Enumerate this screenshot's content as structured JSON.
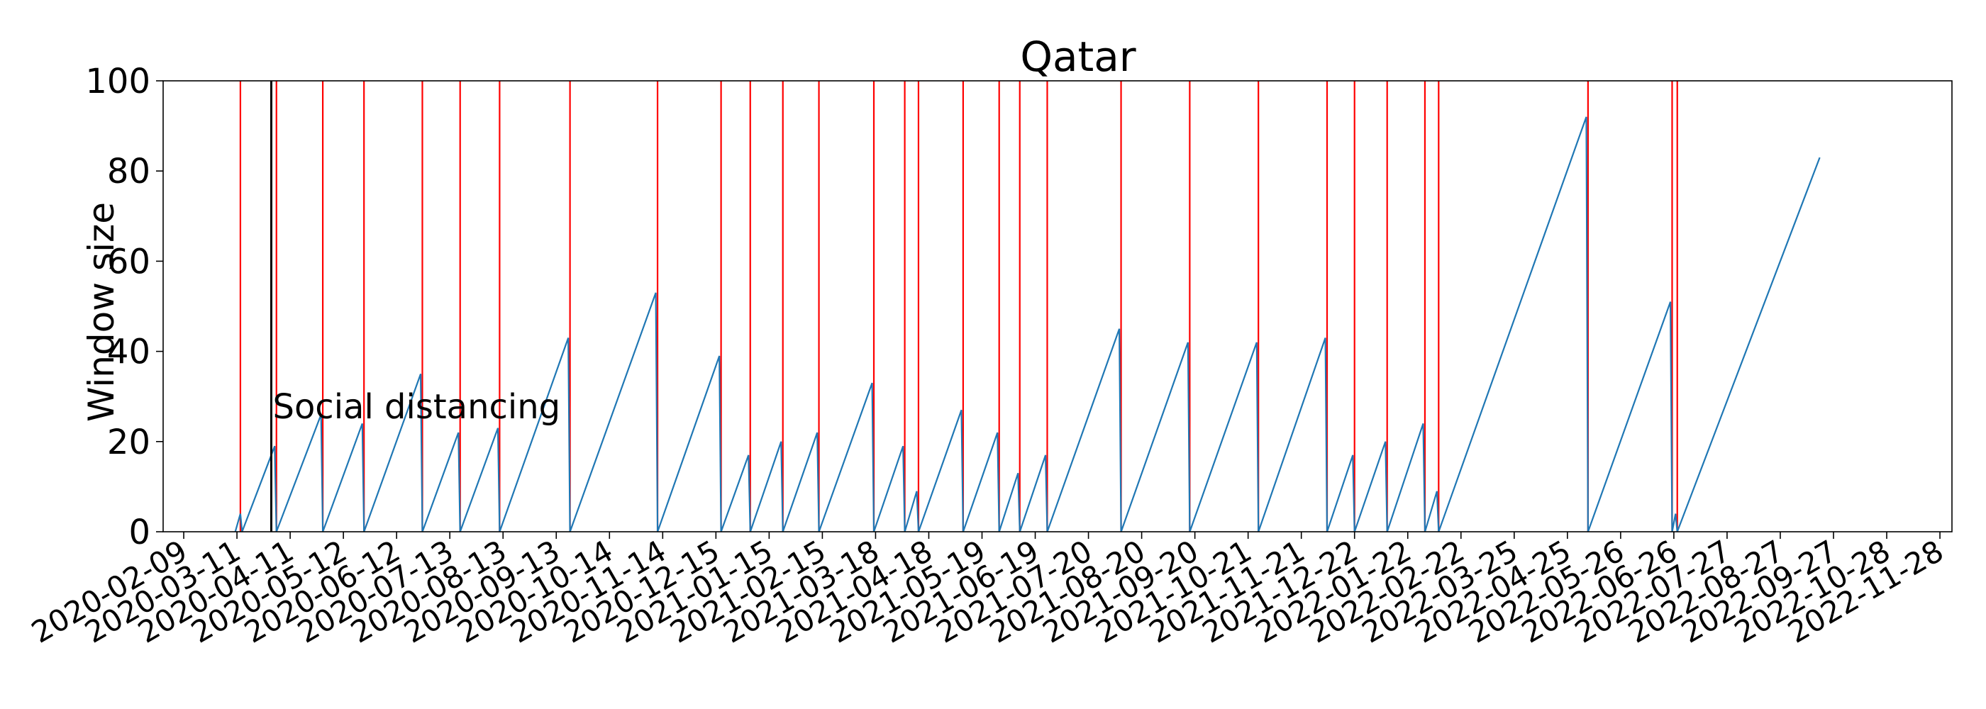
{
  "chart_data": {
    "type": "line",
    "title": "Qatar",
    "xlabel": "",
    "ylabel": "Window size",
    "ylim": [
      0,
      100
    ],
    "yticks": [
      "0",
      "20",
      "40",
      "60",
      "80",
      "100"
    ],
    "xlim": [
      "2020-01-28",
      "2022-12-05"
    ],
    "xtick_labels": [
      "2020-02-09",
      "2020-03-11",
      "2020-04-11",
      "2020-05-12",
      "2020-06-12",
      "2020-07-13",
      "2020-08-13",
      "2020-09-13",
      "2020-10-14",
      "2020-11-14",
      "2020-12-15",
      "2021-01-15",
      "2021-02-15",
      "2021-03-18",
      "2021-04-18",
      "2021-05-19",
      "2021-06-19",
      "2021-07-20",
      "2021-08-20",
      "2021-09-20",
      "2021-10-21",
      "2021-11-21",
      "2021-12-22",
      "2022-01-22",
      "2022-02-22",
      "2022-03-25",
      "2022-04-25",
      "2022-05-26",
      "2022-06-26",
      "2022-07-27",
      "2022-08-27",
      "2022-09-27",
      "2022-10-28",
      "2022-11-28"
    ],
    "grid": false,
    "series_color": "#1f77b4",
    "change_point_color": "#ff0000",
    "intervention_color": "#000000",
    "series": [
      {
        "points": [
          [
            "2020-03-10",
            0
          ],
          [
            "2020-03-13",
            4
          ],
          [
            "2020-03-14",
            0
          ],
          [
            "2020-04-02",
            19
          ],
          [
            "2020-04-03",
            0
          ],
          [
            "2020-04-29",
            26
          ],
          [
            "2020-04-30",
            0
          ],
          [
            "2020-05-23",
            24
          ],
          [
            "2020-05-24",
            0
          ],
          [
            "2020-06-26",
            35
          ],
          [
            "2020-06-27",
            0
          ],
          [
            "2020-07-18",
            22
          ],
          [
            "2020-07-19",
            0
          ],
          [
            "2020-08-10",
            23
          ],
          [
            "2020-08-11",
            0
          ],
          [
            "2020-09-20",
            43
          ],
          [
            "2020-09-21",
            0
          ],
          [
            "2020-11-10",
            53
          ],
          [
            "2020-11-11",
            0
          ],
          [
            "2020-12-17",
            39
          ],
          [
            "2020-12-18",
            0
          ],
          [
            "2021-01-03",
            17
          ],
          [
            "2021-01-04",
            0
          ],
          [
            "2021-01-22",
            20
          ],
          [
            "2021-01-23",
            0
          ],
          [
            "2021-02-12",
            22
          ],
          [
            "2021-02-13",
            0
          ],
          [
            "2021-03-16",
            33
          ],
          [
            "2021-03-17",
            0
          ],
          [
            "2021-04-03",
            19
          ],
          [
            "2021-04-04",
            0
          ],
          [
            "2021-04-11",
            9
          ],
          [
            "2021-04-12",
            0
          ],
          [
            "2021-05-07",
            27
          ],
          [
            "2021-05-08",
            0
          ],
          [
            "2021-05-28",
            22
          ],
          [
            "2021-05-29",
            0
          ],
          [
            "2021-06-09",
            13
          ],
          [
            "2021-06-10",
            0
          ],
          [
            "2021-06-25",
            17
          ],
          [
            "2021-06-26",
            0
          ],
          [
            "2021-08-07",
            45
          ],
          [
            "2021-08-08",
            0
          ],
          [
            "2021-09-16",
            42
          ],
          [
            "2021-09-17",
            0
          ],
          [
            "2021-10-26",
            42
          ],
          [
            "2021-10-27",
            0
          ],
          [
            "2021-12-05",
            43
          ],
          [
            "2021-12-06",
            0
          ],
          [
            "2021-12-21",
            17
          ],
          [
            "2021-12-22",
            0
          ],
          [
            "2022-01-09",
            20
          ],
          [
            "2022-01-10",
            0
          ],
          [
            "2022-01-31",
            24
          ],
          [
            "2022-02-01",
            0
          ],
          [
            "2022-02-08",
            9
          ],
          [
            "2022-02-09",
            0
          ],
          [
            "2022-05-06",
            92
          ],
          [
            "2022-05-07",
            0
          ],
          [
            "2022-06-24",
            51
          ],
          [
            "2022-06-25",
            0
          ],
          [
            "2022-06-27",
            4
          ],
          [
            "2022-06-28",
            0
          ],
          [
            "2022-09-19",
            83
          ]
        ]
      }
    ],
    "change_points": [
      "2020-03-13",
      "2020-04-03",
      "2020-04-30",
      "2020-05-24",
      "2020-06-27",
      "2020-07-19",
      "2020-08-11",
      "2020-09-21",
      "2020-11-11",
      "2020-12-18",
      "2021-01-04",
      "2021-01-23",
      "2021-02-13",
      "2021-03-17",
      "2021-04-04",
      "2021-04-12",
      "2021-05-08",
      "2021-05-29",
      "2021-06-10",
      "2021-06-26",
      "2021-08-08",
      "2021-09-17",
      "2021-10-27",
      "2021-12-06",
      "2021-12-22",
      "2022-01-10",
      "2022-02-01",
      "2022-02-09",
      "2022-05-07",
      "2022-06-25",
      "2022-06-28"
    ],
    "interventions": [
      {
        "date": "2020-03-31",
        "label": "Social distancing"
      }
    ]
  }
}
